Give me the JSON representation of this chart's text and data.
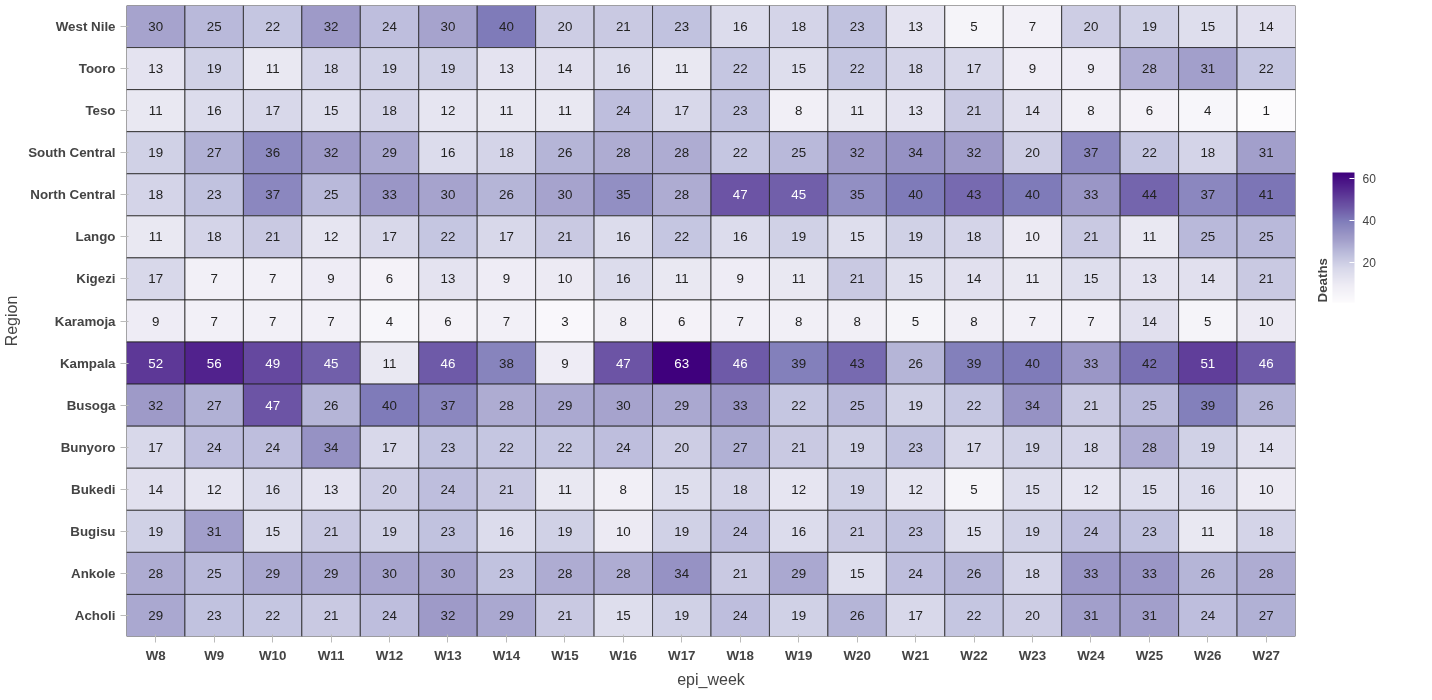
{
  "chart_data": {
    "type": "heatmap",
    "xlabel": "epi_week",
    "ylabel": "Region",
    "legend_title": "Deaths",
    "categories": [
      "W8",
      "W9",
      "W10",
      "W11",
      "W12",
      "W13",
      "W14",
      "W15",
      "W16",
      "W17",
      "W18",
      "W19",
      "W20",
      "W21",
      "W22",
      "W23",
      "W24",
      "W25",
      "W26",
      "W27"
    ],
    "y_categories": [
      "West Nile",
      "Tooro",
      "Teso",
      "South Central",
      "North Central",
      "Lango",
      "Kigezi",
      "Karamoja",
      "Kampala",
      "Busoga",
      "Bunyoro",
      "Bukedi",
      "Bugisu",
      "Ankole",
      "Acholi"
    ],
    "cells": [
      [
        30,
        25,
        22,
        32,
        24,
        30,
        40,
        20,
        21,
        23,
        16,
        18,
        23,
        13,
        5,
        7,
        20,
        19,
        15,
        14
      ],
      [
        13,
        19,
        11,
        18,
        19,
        19,
        13,
        14,
        16,
        11,
        22,
        15,
        22,
        18,
        17,
        9,
        9,
        28,
        31,
        22
      ],
      [
        11,
        16,
        17,
        15,
        18,
        12,
        11,
        11,
        24,
        17,
        23,
        8,
        11,
        13,
        21,
        14,
        8,
        6,
        4,
        1
      ],
      [
        19,
        27,
        36,
        32,
        29,
        16,
        18,
        26,
        28,
        28,
        22,
        25,
        32,
        34,
        32,
        20,
        37,
        22,
        18,
        31
      ],
      [
        18,
        23,
        37,
        25,
        33,
        30,
        26,
        30,
        35,
        28,
        47,
        45,
        35,
        40,
        43,
        40,
        33,
        44,
        37,
        41
      ],
      [
        11,
        18,
        21,
        12,
        17,
        22,
        17,
        21,
        16,
        22,
        16,
        19,
        15,
        19,
        18,
        10,
        21,
        11,
        25,
        25
      ],
      [
        17,
        7,
        7,
        9,
        6,
        13,
        9,
        10,
        16,
        11,
        9,
        11,
        21,
        15,
        14,
        11,
        15,
        13,
        14,
        21
      ],
      [
        9,
        7,
        7,
        7,
        4,
        6,
        7,
        3,
        8,
        6,
        7,
        8,
        8,
        5,
        8,
        7,
        7,
        14,
        5,
        10
      ],
      [
        52,
        56,
        49,
        45,
        11,
        46,
        38,
        9,
        47,
        63,
        46,
        39,
        43,
        26,
        39,
        40,
        33,
        42,
        51,
        46
      ],
      [
        32,
        27,
        47,
        26,
        40,
        37,
        28,
        29,
        30,
        29,
        33,
        22,
        25,
        19,
        22,
        34,
        21,
        25,
        39,
        26
      ],
      [
        17,
        24,
        24,
        34,
        17,
        23,
        22,
        22,
        24,
        20,
        27,
        21,
        19,
        23,
        17,
        19,
        18,
        28,
        19,
        14
      ],
      [
        14,
        12,
        16,
        13,
        20,
        24,
        21,
        11,
        8,
        15,
        18,
        12,
        19,
        12,
        5,
        15,
        12,
        15,
        16,
        10
      ],
      [
        19,
        31,
        15,
        21,
        19,
        23,
        16,
        19,
        10,
        19,
        24,
        16,
        21,
        23,
        15,
        19,
        24,
        23,
        11,
        18
      ],
      [
        28,
        25,
        29,
        29,
        30,
        30,
        23,
        28,
        28,
        34,
        21,
        29,
        15,
        24,
        26,
        18,
        33,
        33,
        26,
        28
      ],
      [
        29,
        23,
        22,
        21,
        24,
        32,
        29,
        21,
        15,
        19,
        24,
        19,
        26,
        17,
        22,
        20,
        31,
        31,
        24,
        27
      ]
    ],
    "clim": [
      1,
      63
    ],
    "cticks": [
      20,
      40,
      60
    ],
    "data_labels": true
  }
}
